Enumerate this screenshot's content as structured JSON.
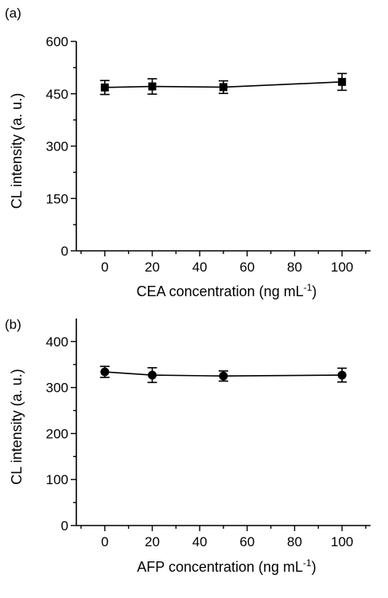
{
  "chart_data": [
    {
      "type": "line",
      "panel_label": "(a)",
      "marker": "square",
      "xlabel": "CEA concentration (ng mL",
      "xlabel_sup": "-1",
      "xlabel_tail": ")",
      "ylabel": "CL intensity (a. u.)",
      "xlim": [
        -12,
        112
      ],
      "ylim": [
        0,
        600
      ],
      "xticks": [
        0,
        20,
        40,
        60,
        80,
        100
      ],
      "yticks": [
        0,
        150,
        300,
        450,
        600
      ],
      "x": [
        0,
        20,
        50,
        100
      ],
      "y": [
        468,
        471,
        469,
        484
      ],
      "yerr": [
        20,
        22,
        18,
        24
      ]
    },
    {
      "type": "line",
      "panel_label": "(b)",
      "marker": "circle",
      "xlabel": "AFP concentration (ng mL",
      "xlabel_sup": "-1",
      "xlabel_tail": ")",
      "ylabel": "CL intensity (a. u.)",
      "xlim": [
        -12,
        112
      ],
      "ylim": [
        0,
        450
      ],
      "xticks": [
        0,
        20,
        40,
        60,
        80,
        100
      ],
      "yticks": [
        0,
        100,
        200,
        300,
        400
      ],
      "x": [
        0,
        20,
        50,
        100
      ],
      "y": [
        334,
        327,
        325,
        327
      ],
      "yerr": [
        12,
        16,
        11,
        15
      ]
    }
  ]
}
